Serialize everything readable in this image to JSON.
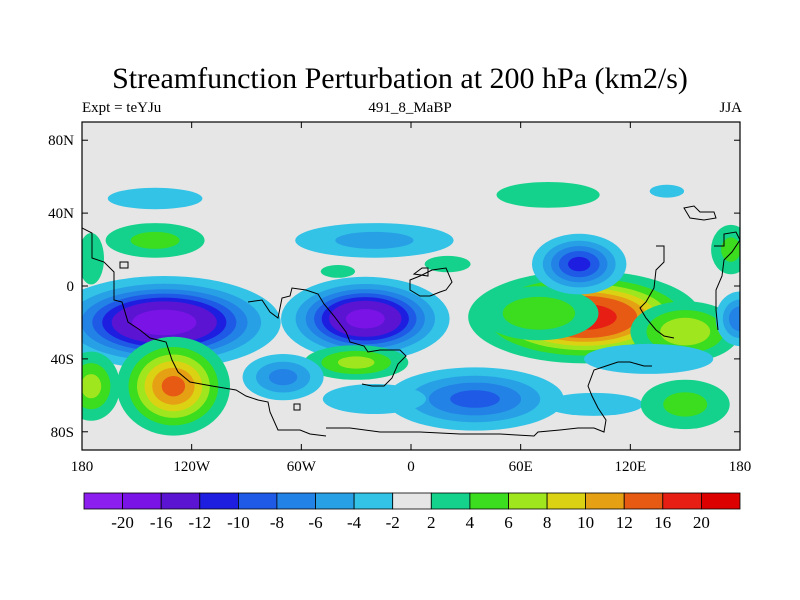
{
  "title": "Streamfunction Perturbation at 200 hPa (km2/s)",
  "subtitle_left": "Expt = teYJu",
  "subtitle_center": "491_8_MaBP",
  "subtitle_right": "JJA",
  "map": {
    "background_color": "#e6e6e6",
    "lon_ticks": [
      {
        "lon": -180,
        "label": "180"
      },
      {
        "lon": -120,
        "label": "120W"
      },
      {
        "lon": -60,
        "label": "60W"
      },
      {
        "lon": 0,
        "label": "0"
      },
      {
        "lon": 60,
        "label": "60E"
      },
      {
        "lon": 120,
        "label": "120E"
      },
      {
        "lon": 180,
        "label": "180"
      }
    ],
    "lat_ticks": [
      {
        "lat": 80,
        "label": "80N"
      },
      {
        "lat": 40,
        "label": "40N"
      },
      {
        "lat": 0,
        "label": "0"
      },
      {
        "lat": -40,
        "label": "40S"
      },
      {
        "lat": -80,
        "label": "80S"
      }
    ],
    "lon_range": [
      -180,
      180
    ],
    "lat_range": [
      -90,
      90
    ]
  },
  "colorbar": {
    "colors": [
      "#8c1ef0",
      "#7a14e6",
      "#5a14d2",
      "#1e1ee1",
      "#1e5ae6",
      "#2382e6",
      "#28a0e6",
      "#32c3e6",
      "#e6e6e6",
      "#14d28c",
      "#3cdc1e",
      "#a0e61e",
      "#dcd214",
      "#e6a014",
      "#e65a14",
      "#e61e14",
      "#dc0000"
    ],
    "labels": [
      "-20",
      "-16",
      "-12",
      "-10",
      "-8",
      "-6",
      "-4",
      "-2",
      "2",
      "4",
      "6",
      "8",
      "10",
      "12",
      "16",
      "20"
    ]
  },
  "features": [
    {
      "lon": -135,
      "lat": -20,
      "value": -19,
      "sx": 30,
      "sy": 12
    },
    {
      "lon": -25,
      "lat": -18,
      "value": -18,
      "sx": 22,
      "sy": 11
    },
    {
      "lon": 95,
      "lat": -17,
      "value": 19,
      "sx": 30,
      "sy": 12
    },
    {
      "lon": 150,
      "lat": -25,
      "value": 8,
      "sx": 18,
      "sy": 10
    },
    {
      "lon": 70,
      "lat": -15,
      "value": 6,
      "sx": 22,
      "sy": 10
    },
    {
      "lon": 180,
      "lat": -18,
      "value": -8,
      "sx": 8,
      "sy": 9
    },
    {
      "lon": 92,
      "lat": 12,
      "value": -11,
      "sx": 14,
      "sy": 9
    },
    {
      "lon": -130,
      "lat": -55,
      "value": 13,
      "sx": 16,
      "sy": 14
    },
    {
      "lon": -175,
      "lat": -55,
      "value": 7,
      "sx": 10,
      "sy": 12
    },
    {
      "lon": -140,
      "lat": 25,
      "value": 5,
      "sx": 20,
      "sy": 7
    },
    {
      "lon": -175,
      "lat": 15,
      "value": 4,
      "sx": 6,
      "sy": 12
    },
    {
      "lon": 175,
      "lat": 20,
      "value": 5,
      "sx": 8,
      "sy": 10
    },
    {
      "lon": -140,
      "lat": 48,
      "value": -4,
      "sx": 22,
      "sy": 5
    },
    {
      "lon": -20,
      "lat": 25,
      "value": -5,
      "sx": 32,
      "sy": 7
    },
    {
      "lon": -30,
      "lat": -42,
      "value": 7,
      "sx": 18,
      "sy": 6
    },
    {
      "lon": -70,
      "lat": -50,
      "value": -7,
      "sx": 14,
      "sy": 8
    },
    {
      "lon": 35,
      "lat": -62,
      "value": -9,
      "sx": 28,
      "sy": 10
    },
    {
      "lon": -20,
      "lat": -62,
      "value": -4,
      "sx": 24,
      "sy": 7
    },
    {
      "lon": 100,
      "lat": -65,
      "value": -3,
      "sx": 30,
      "sy": 7
    },
    {
      "lon": 150,
      "lat": -65,
      "value": 5,
      "sx": 18,
      "sy": 10
    },
    {
      "lon": 130,
      "lat": -40,
      "value": -4,
      "sx": 30,
      "sy": 7
    },
    {
      "lon": 75,
      "lat": 50,
      "value": 4,
      "sx": 24,
      "sy": 6
    },
    {
      "lon": 140,
      "lat": 52,
      "value": -4,
      "sx": 8,
      "sy": 3
    },
    {
      "lon": -40,
      "lat": 8,
      "value": 4,
      "sx": 8,
      "sy": 3
    },
    {
      "lon": 20,
      "lat": 12,
      "value": 3,
      "sx": 14,
      "sy": 5
    }
  ]
}
